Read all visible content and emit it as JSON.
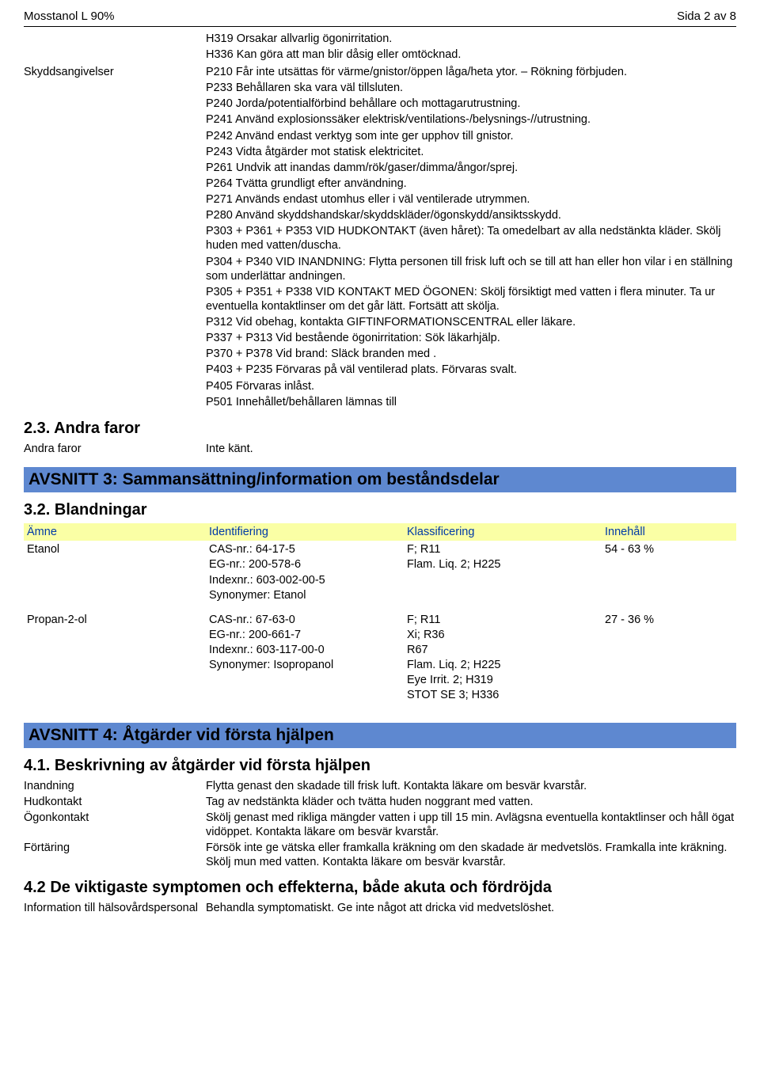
{
  "header": {
    "product": "Mosstanol L 90%",
    "page": "Sida 2 av 8"
  },
  "hazard_lines": [
    "H319 Orsakar allvarlig ögonirritation.",
    "H336 Kan göra att man blir dåsig eller omtöcknad."
  ],
  "skyddsangivelser": {
    "label": "Skyddsangivelser",
    "lines": [
      "P210 Får inte utsättas för värme/gnistor/öppen låga/heta ytor. – Rökning förbjuden.",
      "P233 Behållaren ska vara väl tillsluten.",
      "P240 Jorda/potentialförbind behållare och mottagarutrustning.",
      "P241 Använd explosionssäker elektrisk/ventilations-/belysnings-//utrustning.",
      "P242 Använd endast verktyg som inte ger upphov till gnistor.",
      "P243 Vidta åtgärder mot statisk elektricitet.",
      "P261 Undvik att inandas damm/rök/gaser/dimma/ångor/sprej.",
      "P264 Tvätta grundligt efter användning.",
      "P271 Används endast utomhus eller i väl ventilerade utrymmen.",
      "P280 Använd skyddshandskar/skyddskläder/ögonskydd/ansiktsskydd.",
      "P303 + P361 + P353 VID HUDKONTAKT (även håret): Ta omedelbart av alla nedstänkta kläder. Skölj huden med vatten/duscha.",
      "P304 + P340 VID INANDNING: Flytta personen till frisk luft och se till att han eller hon vilar i en ställning som underlättar andningen.",
      "P305 + P351 + P338 VID KONTAKT MED ÖGONEN: Skölj försiktigt med vatten i flera minuter. Ta ur eventuella kontaktlinser om det går lätt. Fortsätt att skölja.",
      "P312 Vid obehag, kontakta GIFTINFORMATIONSCENTRAL eller läkare.",
      "P337 + P313 Vid bestående ögonirritation: Sök läkarhjälp.",
      "P370 + P378 Vid brand: Släck branden med .",
      "P403 + P235 Förvaras på väl ventilerad plats. Förvaras svalt.",
      "P405 Förvaras inlåst.",
      "P501 Innehållet/behållaren lämnas till"
    ]
  },
  "s23": {
    "heading": "2.3. Andra faror",
    "label": "Andra faror",
    "value": "Inte känt."
  },
  "section3": {
    "heading": "AVSNITT 3: Sammansättning/information om beståndsdelar",
    "sub": "3.2. Blandningar",
    "columns": {
      "c1": "Ämne",
      "c2": "Identifiering",
      "c3": "Klassificering",
      "c4": "Innehåll"
    },
    "rows": [
      {
        "name": "Etanol",
        "ident": [
          "CAS-nr.: 64-17-5",
          "EG-nr.: 200-578-6",
          "Indexnr.: 603-002-00-5",
          "Synonymer: Etanol"
        ],
        "klass": [
          "F; R11",
          "Flam. Liq. 2; H225"
        ],
        "content": "54 - 63 %"
      },
      {
        "name": "Propan-2-ol",
        "ident": [
          "CAS-nr.: 67-63-0",
          "EG-nr.: 200-661-7",
          "Indexnr.: 603-117-00-0",
          "Synonymer: Isopropanol"
        ],
        "klass": [
          "F; R11",
          "Xi; R36",
          "R67",
          "Flam. Liq. 2; H225",
          "Eye Irrit. 2; H319",
          "STOT SE 3; H336"
        ],
        "content": "27 - 36 %"
      }
    ]
  },
  "section4": {
    "heading": "AVSNITT 4: Åtgärder vid första hjälpen",
    "sub41": "4.1. Beskrivning av åtgärder vid första hjälpen",
    "items": [
      {
        "label": "Inandning",
        "value": "Flytta genast den skadade till frisk luft. Kontakta läkare om besvär kvarstår."
      },
      {
        "label": "Hudkontakt",
        "value": "Tag av nedstänkta kläder och tvätta huden noggrant med vatten."
      },
      {
        "label": "Ögonkontakt",
        "value": "Skölj genast med rikliga mängder vatten i upp till 15 min. Avlägsna eventuella kontaktlinser och håll ögat vidöppet. Kontakta läkare om besvär kvarstår."
      },
      {
        "label": "Förtäring",
        "value": "Försök inte ge vätska eller framkalla kräkning om den skadade är medvetslös. Framkalla inte kräkning. Skölj mun med vatten. Kontakta läkare om besvär kvarstår."
      }
    ],
    "sub42": "4.2 De viktigaste symptomen och effekterna, både akuta och fördröjda",
    "items42": [
      {
        "label": "Information till hälsovårdspersonal",
        "value": "Behandla symptomatiskt. Ge inte något att dricka vid medvetslöshet."
      }
    ]
  }
}
